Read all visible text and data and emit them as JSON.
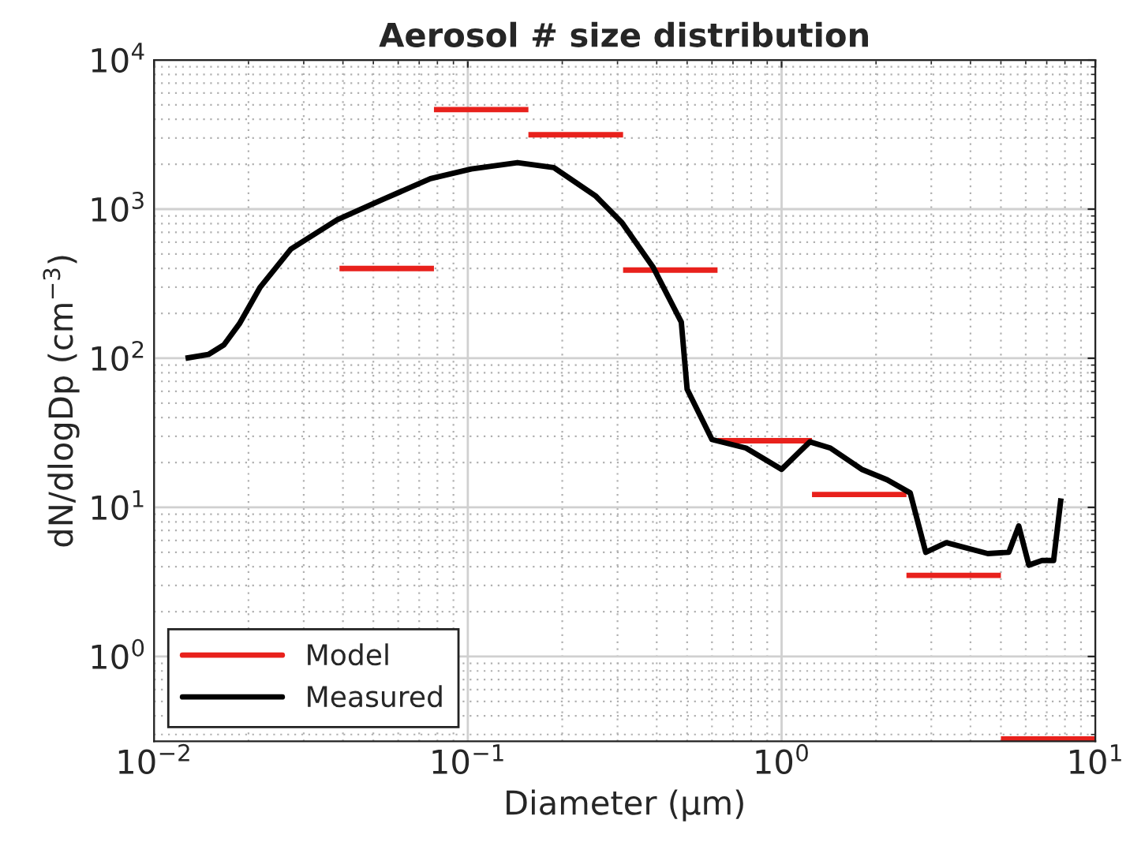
{
  "chart_data": {
    "type": "line",
    "title": "Aerosol # size distribution",
    "xlabel": "Diameter (μm)",
    "ylabel": "dN/dlogDp (cm$^{−3}$)",
    "log": "xy",
    "xlim": [
      0.01,
      10
    ],
    "ylim": [
      0.27,
      10000
    ],
    "xticks": [
      {
        "value": 0.01,
        "label": "10$^{−2}$"
      },
      {
        "value": 0.1,
        "label": "10$^{−1}$"
      },
      {
        "value": 1,
        "label": "10$^{0}$"
      },
      {
        "value": 10,
        "label": "10$^{1}$"
      }
    ],
    "yticks": [
      {
        "value": 1,
        "label": "10$^{0}$"
      },
      {
        "value": 10,
        "label": "10$^{1}$"
      },
      {
        "value": 100,
        "label": "10$^{2}$"
      },
      {
        "value": 1000,
        "label": "10$^{3}$"
      },
      {
        "value": 10000,
        "label": "10$^{4}$"
      }
    ],
    "grid": true,
    "legend": "bottom left",
    "marker": "none",
    "line_style": "solid",
    "series": [
      {
        "name": "Model",
        "color": "#e8211c",
        "x": [
          0.039,
          0.078
        ],
        "values": [
          400,
          400
        ]
      },
      {
        "color": "#e8211c",
        "x": [
          0.078,
          0.156
        ],
        "values": [
          4650,
          4650
        ]
      },
      {
        "color": "#e8211c",
        "x": [
          0.156,
          0.3125
        ],
        "values": [
          3150,
          3150
        ]
      },
      {
        "color": "#e8211c",
        "x": [
          0.3125,
          0.625
        ],
        "values": [
          390,
          390
        ]
      },
      {
        "color": "#e8211c",
        "x": [
          0.625,
          1.25
        ],
        "values": [
          28,
          28
        ]
      },
      {
        "color": "#e8211c",
        "x": [
          1.25,
          2.5
        ],
        "values": [
          12.2,
          12.2
        ]
      },
      {
        "color": "#e8211c",
        "x": [
          2.5,
          5
        ],
        "values": [
          3.5,
          3.5
        ]
      },
      {
        "color": "#e8211c",
        "x": [
          5,
          10
        ],
        "values": [
          0.28,
          0.28
        ]
      },
      {
        "name": "Measured",
        "color": "#000000",
        "x": [
          0.0126,
          0.0149,
          0.0167,
          0.0187,
          0.0218,
          0.0273,
          0.0384,
          0.054,
          0.076,
          0.1026,
          0.144,
          0.188,
          0.255,
          0.31,
          0.389,
          0.479,
          0.5,
          0.6,
          0.77,
          1.0,
          1.23,
          1.43,
          1.8,
          2.17,
          2.57,
          2.88,
          3.35,
          4.54,
          5.3,
          5.7,
          6.14,
          6.76,
          7.36,
          7.77
        ],
        "values": [
          100,
          106,
          123,
          170,
          300,
          540,
          850,
          1170,
          1600,
          1860,
          2050,
          1900,
          1230,
          810,
          410,
          175,
          62,
          28.5,
          25,
          18,
          27.5,
          25,
          18,
          15.3,
          12.5,
          5.0,
          5.8,
          4.9,
          5.0,
          7.5,
          4.1,
          4.4,
          4.4,
          11.5
        ]
      }
    ]
  }
}
